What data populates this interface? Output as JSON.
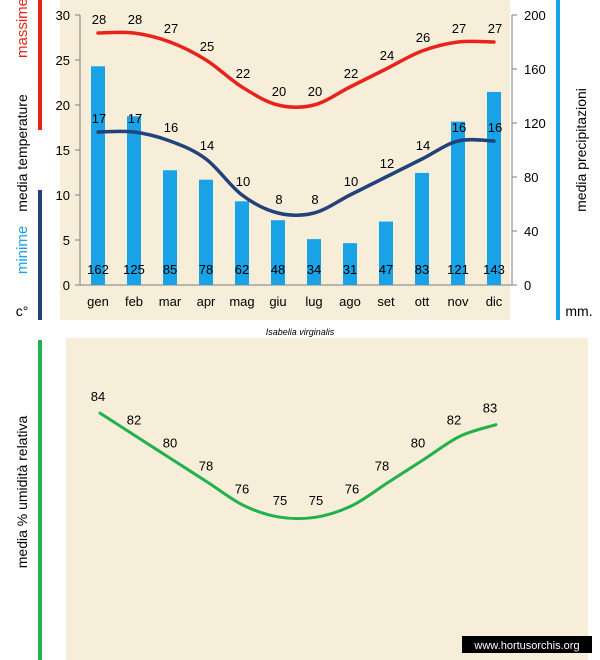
{
  "colors": {
    "background": "#ffffff",
    "panel": "#f6eed9",
    "max_line": "#e8231c",
    "min_line": "#22427a",
    "bars": "#1aa2e6",
    "humidity_line": "#22b14c",
    "watermark_bg": "#000000",
    "watermark_text": "#ffffff"
  },
  "watermark": "www.hortusorchis.org",
  "chart_data": [
    {
      "type": "bar+line",
      "title": "Isabelia virginalis",
      "categories": [
        "gen",
        "feb",
        "mar",
        "apr",
        "mag",
        "giu",
        "lug",
        "ago",
        "set",
        "ott",
        "nov",
        "dic"
      ],
      "left_axis": {
        "label": "media temperature",
        "unit": "c°",
        "ylim": [
          0,
          30
        ],
        "ticks": [
          0,
          5,
          10,
          15,
          20,
          25,
          30
        ]
      },
      "right_axis": {
        "label": "media precipitazioni",
        "unit": "mm.",
        "ylim": [
          0,
          200
        ],
        "ticks": [
          0,
          40,
          80,
          120,
          160,
          200
        ]
      },
      "series": [
        {
          "name": "massime",
          "axis": "left",
          "kind": "line",
          "values": [
            28,
            28,
            27,
            25,
            22,
            20,
            20,
            22,
            24,
            26,
            27,
            27
          ]
        },
        {
          "name": "minime",
          "axis": "left",
          "kind": "line",
          "values": [
            17,
            17,
            16,
            14,
            10,
            8,
            8,
            10,
            12,
            14,
            16,
            16
          ]
        },
        {
          "axis": "right",
          "kind": "bar",
          "values": [
            162,
            125,
            85,
            78,
            62,
            48,
            34,
            31,
            47,
            83,
            121,
            143
          ]
        }
      ],
      "grid": false
    },
    {
      "type": "line",
      "ylabel": "media % umidità relativa",
      "categories": [
        "gen",
        "feb",
        "mar",
        "apr",
        "mag",
        "giu",
        "lug",
        "ago",
        "set",
        "ott",
        "nov",
        "dic"
      ],
      "values": [
        84,
        82,
        80,
        78,
        76,
        75,
        75,
        76,
        78,
        80,
        82,
        83
      ],
      "ylim": [
        70,
        86
      ],
      "grid": false
    }
  ]
}
